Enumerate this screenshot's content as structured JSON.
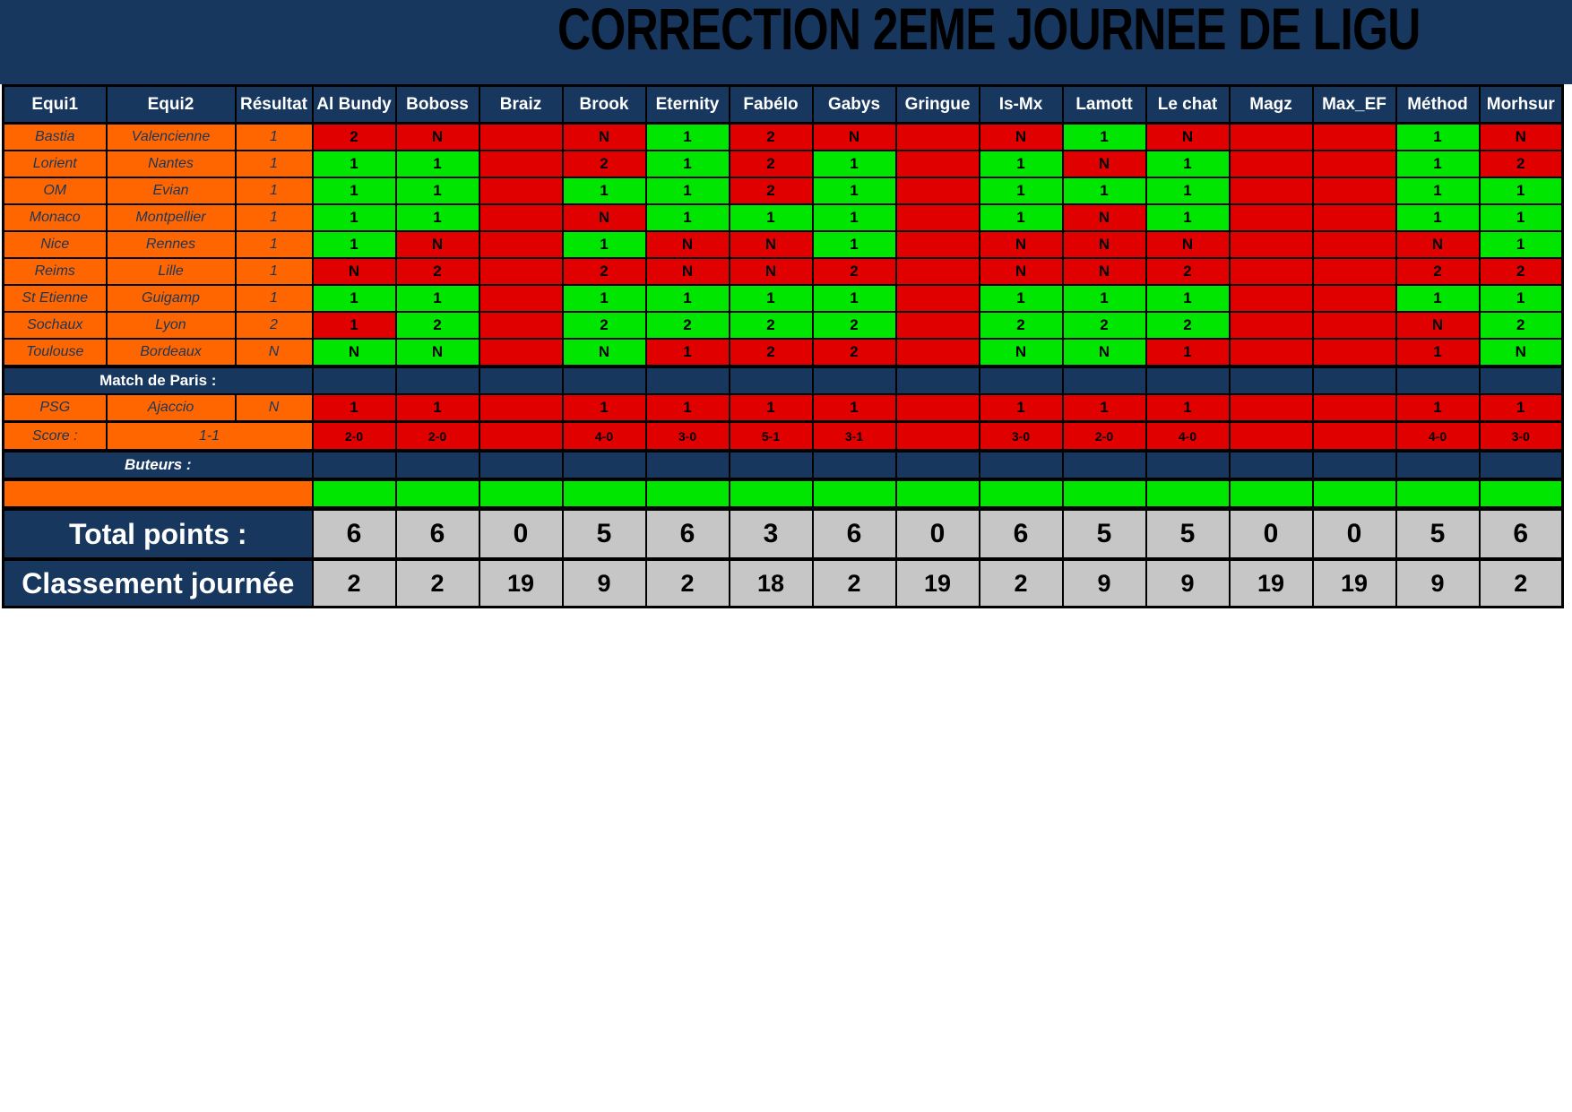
{
  "title": "CORRECTION 2EME JOURNEE DE LIGU",
  "colors": {
    "navy": "#17375e",
    "orange": "#ff6600",
    "wrong_red": "#e00000",
    "correct_green": "#00e600",
    "total_gray": "#c6c6c6"
  },
  "table": {
    "column_headers": [
      "Equi1",
      "Equi2",
      "Résultat"
    ],
    "players": [
      "Al Bundy",
      "Boboss",
      "Braiz",
      "Brook",
      "Eternity",
      "Fabélo",
      "Gabys",
      "Gringue",
      "Is-Mx",
      "Lamott",
      "Le chat",
      "Magz",
      "Max_EF",
      "Méthod",
      "Morhsur"
    ],
    "matches": [
      {
        "equi1": "Bastia",
        "equi2": "Valencienne",
        "resultat": "1",
        "predictions": [
          {
            "v": "2",
            "ok": false
          },
          {
            "v": "N",
            "ok": false
          },
          {
            "v": "",
            "ok": false
          },
          {
            "v": "N",
            "ok": false
          },
          {
            "v": "1",
            "ok": true
          },
          {
            "v": "2",
            "ok": false
          },
          {
            "v": "N",
            "ok": false
          },
          {
            "v": "",
            "ok": false
          },
          {
            "v": "N",
            "ok": false
          },
          {
            "v": "1",
            "ok": true
          },
          {
            "v": "N",
            "ok": false
          },
          {
            "v": "",
            "ok": false
          },
          {
            "v": "",
            "ok": false
          },
          {
            "v": "1",
            "ok": true
          },
          {
            "v": "N",
            "ok": false
          }
        ]
      },
      {
        "equi1": "Lorient",
        "equi2": "Nantes",
        "resultat": "1",
        "predictions": [
          {
            "v": "1",
            "ok": true
          },
          {
            "v": "1",
            "ok": true
          },
          {
            "v": "",
            "ok": false
          },
          {
            "v": "2",
            "ok": false
          },
          {
            "v": "1",
            "ok": true
          },
          {
            "v": "2",
            "ok": false
          },
          {
            "v": "1",
            "ok": true
          },
          {
            "v": "",
            "ok": false
          },
          {
            "v": "1",
            "ok": true
          },
          {
            "v": "N",
            "ok": false
          },
          {
            "v": "1",
            "ok": true
          },
          {
            "v": "",
            "ok": false
          },
          {
            "v": "",
            "ok": false
          },
          {
            "v": "1",
            "ok": true
          },
          {
            "v": "2",
            "ok": false
          }
        ]
      },
      {
        "equi1": "OM",
        "equi2": "Evian",
        "resultat": "1",
        "predictions": [
          {
            "v": "1",
            "ok": true
          },
          {
            "v": "1",
            "ok": true
          },
          {
            "v": "",
            "ok": false
          },
          {
            "v": "1",
            "ok": true
          },
          {
            "v": "1",
            "ok": true
          },
          {
            "v": "2",
            "ok": false
          },
          {
            "v": "1",
            "ok": true
          },
          {
            "v": "",
            "ok": false
          },
          {
            "v": "1",
            "ok": true
          },
          {
            "v": "1",
            "ok": true
          },
          {
            "v": "1",
            "ok": true
          },
          {
            "v": "",
            "ok": false
          },
          {
            "v": "",
            "ok": false
          },
          {
            "v": "1",
            "ok": true
          },
          {
            "v": "1",
            "ok": true
          }
        ]
      },
      {
        "equi1": "Monaco",
        "equi2": "Montpellier",
        "resultat": "1",
        "predictions": [
          {
            "v": "1",
            "ok": true
          },
          {
            "v": "1",
            "ok": true
          },
          {
            "v": "",
            "ok": false
          },
          {
            "v": "N",
            "ok": false
          },
          {
            "v": "1",
            "ok": true
          },
          {
            "v": "1",
            "ok": true
          },
          {
            "v": "1",
            "ok": true
          },
          {
            "v": "",
            "ok": false
          },
          {
            "v": "1",
            "ok": true
          },
          {
            "v": "N",
            "ok": false
          },
          {
            "v": "1",
            "ok": true
          },
          {
            "v": "",
            "ok": false
          },
          {
            "v": "",
            "ok": false
          },
          {
            "v": "1",
            "ok": true
          },
          {
            "v": "1",
            "ok": true
          }
        ]
      },
      {
        "equi1": "Nice",
        "equi2": "Rennes",
        "resultat": "1",
        "predictions": [
          {
            "v": "1",
            "ok": true
          },
          {
            "v": "N",
            "ok": false
          },
          {
            "v": "",
            "ok": false
          },
          {
            "v": "1",
            "ok": true
          },
          {
            "v": "N",
            "ok": false
          },
          {
            "v": "N",
            "ok": false
          },
          {
            "v": "1",
            "ok": true
          },
          {
            "v": "",
            "ok": false
          },
          {
            "v": "N",
            "ok": false
          },
          {
            "v": "N",
            "ok": false
          },
          {
            "v": "N",
            "ok": false
          },
          {
            "v": "",
            "ok": false
          },
          {
            "v": "",
            "ok": false
          },
          {
            "v": "N",
            "ok": false
          },
          {
            "v": "1",
            "ok": true
          }
        ]
      },
      {
        "equi1": "Reims",
        "equi2": "Lille",
        "resultat": "1",
        "predictions": [
          {
            "v": "N",
            "ok": false
          },
          {
            "v": "2",
            "ok": false
          },
          {
            "v": "",
            "ok": false
          },
          {
            "v": "2",
            "ok": false
          },
          {
            "v": "N",
            "ok": false
          },
          {
            "v": "N",
            "ok": false
          },
          {
            "v": "2",
            "ok": false
          },
          {
            "v": "",
            "ok": false
          },
          {
            "v": "N",
            "ok": false
          },
          {
            "v": "N",
            "ok": false
          },
          {
            "v": "2",
            "ok": false
          },
          {
            "v": "",
            "ok": false
          },
          {
            "v": "",
            "ok": false
          },
          {
            "v": "2",
            "ok": false
          },
          {
            "v": "2",
            "ok": false
          }
        ]
      },
      {
        "equi1": "St Etienne",
        "equi2": "Guigamp",
        "resultat": "1",
        "predictions": [
          {
            "v": "1",
            "ok": true
          },
          {
            "v": "1",
            "ok": true
          },
          {
            "v": "",
            "ok": false
          },
          {
            "v": "1",
            "ok": true
          },
          {
            "v": "1",
            "ok": true
          },
          {
            "v": "1",
            "ok": true
          },
          {
            "v": "1",
            "ok": true
          },
          {
            "v": "",
            "ok": false
          },
          {
            "v": "1",
            "ok": true
          },
          {
            "v": "1",
            "ok": true
          },
          {
            "v": "1",
            "ok": true
          },
          {
            "v": "",
            "ok": false
          },
          {
            "v": "",
            "ok": false
          },
          {
            "v": "1",
            "ok": true
          },
          {
            "v": "1",
            "ok": true
          }
        ]
      },
      {
        "equi1": "Sochaux",
        "equi2": "Lyon",
        "resultat": "2",
        "predictions": [
          {
            "v": "1",
            "ok": false
          },
          {
            "v": "2",
            "ok": true
          },
          {
            "v": "",
            "ok": false
          },
          {
            "v": "2",
            "ok": true
          },
          {
            "v": "2",
            "ok": true
          },
          {
            "v": "2",
            "ok": true
          },
          {
            "v": "2",
            "ok": true
          },
          {
            "v": "",
            "ok": false
          },
          {
            "v": "2",
            "ok": true
          },
          {
            "v": "2",
            "ok": true
          },
          {
            "v": "2",
            "ok": true
          },
          {
            "v": "",
            "ok": false
          },
          {
            "v": "",
            "ok": false
          },
          {
            "v": "N",
            "ok": false
          },
          {
            "v": "2",
            "ok": true
          }
        ]
      },
      {
        "equi1": "Toulouse",
        "equi2": "Bordeaux",
        "resultat": "N",
        "predictions": [
          {
            "v": "N",
            "ok": true
          },
          {
            "v": "N",
            "ok": true
          },
          {
            "v": "",
            "ok": false
          },
          {
            "v": "N",
            "ok": true
          },
          {
            "v": "1",
            "ok": false
          },
          {
            "v": "2",
            "ok": false
          },
          {
            "v": "2",
            "ok": false
          },
          {
            "v": "",
            "ok": false
          },
          {
            "v": "N",
            "ok": true
          },
          {
            "v": "N",
            "ok": true
          },
          {
            "v": "1",
            "ok": false
          },
          {
            "v": "",
            "ok": false
          },
          {
            "v": "",
            "ok": false
          },
          {
            "v": "1",
            "ok": false
          },
          {
            "v": "N",
            "ok": true
          }
        ]
      }
    ],
    "paris_section_label": "Match de Paris :",
    "paris_match": {
      "equi1": "PSG",
      "equi2": "Ajaccio",
      "resultat": "N",
      "predictions": [
        {
          "v": "1",
          "ok": false
        },
        {
          "v": "1",
          "ok": false
        },
        {
          "v": "",
          "ok": false
        },
        {
          "v": "1",
          "ok": false
        },
        {
          "v": "1",
          "ok": false
        },
        {
          "v": "1",
          "ok": false
        },
        {
          "v": "1",
          "ok": false
        },
        {
          "v": "",
          "ok": false
        },
        {
          "v": "1",
          "ok": false
        },
        {
          "v": "1",
          "ok": false
        },
        {
          "v": "1",
          "ok": false
        },
        {
          "v": "",
          "ok": false
        },
        {
          "v": "",
          "ok": false
        },
        {
          "v": "1",
          "ok": false
        },
        {
          "v": "1",
          "ok": false
        }
      ]
    },
    "score_row": {
      "label": "Score :",
      "result": "1-1",
      "values": [
        "2-0",
        "2-0",
        "",
        "4-0",
        "3-0",
        "5-1",
        "3-1",
        "",
        "3-0",
        "2-0",
        "4-0",
        "",
        "",
        "4-0",
        "3-0"
      ]
    },
    "buteurs_label": "Buteurs :",
    "total_row": {
      "label": "Total points :",
      "values": [
        "6",
        "6",
        "0",
        "5",
        "6",
        "3",
        "6",
        "0",
        "6",
        "5",
        "5",
        "0",
        "0",
        "5",
        "6"
      ]
    },
    "rank_row": {
      "label": "Classement journée",
      "values": [
        "2",
        "2",
        "19",
        "9",
        "2",
        "18",
        "2",
        "19",
        "2",
        "9",
        "9",
        "19",
        "19",
        "9",
        "2"
      ]
    }
  }
}
